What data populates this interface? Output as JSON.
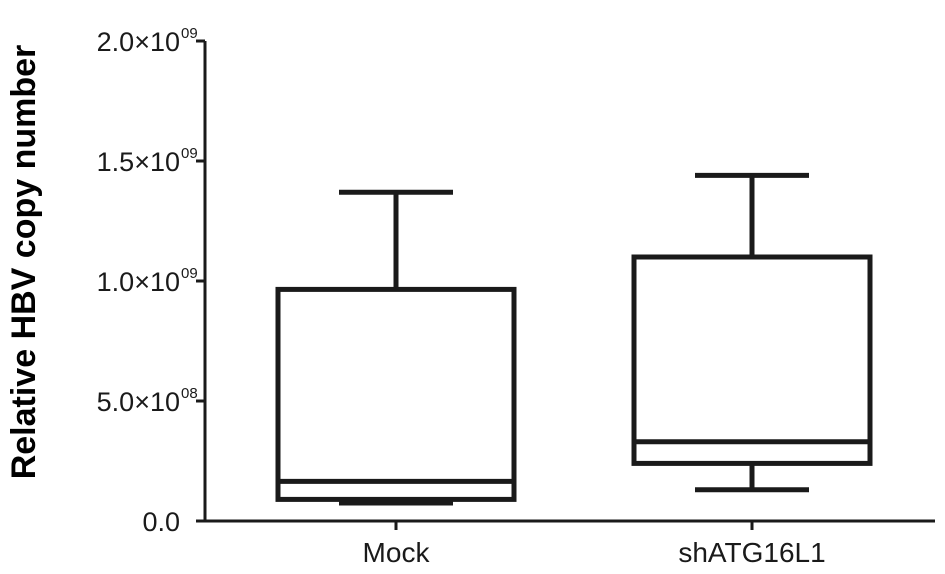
{
  "chart_data": {
    "type": "boxplot",
    "title": "",
    "ylabel": "Relative HBV copy number",
    "xlabel": "",
    "ylim": [
      0,
      2000000000
    ],
    "y_ticks": [
      {
        "value": 0,
        "mantissa": "0.0",
        "exp": ""
      },
      {
        "value": 500000000,
        "mantissa": "5.0×10",
        "exp": "08"
      },
      {
        "value": 1000000000,
        "mantissa": "1.0×10",
        "exp": "09"
      },
      {
        "value": 1500000000,
        "mantissa": "1.5×10",
        "exp": "09"
      },
      {
        "value": 2000000000,
        "mantissa": "2.0×10",
        "exp": "09"
      }
    ],
    "categories": [
      "Mock",
      "shATG16L1"
    ],
    "boxes": [
      {
        "category": "Mock",
        "min": 75000000,
        "q1": 90000000,
        "median": 165000000,
        "q3": 965000000,
        "max": 1370000000
      },
      {
        "category": "shATG16L1",
        "min": 130000000,
        "q1": 240000000,
        "median": 330000000,
        "q3": 1100000000,
        "max": 1440000000
      }
    ],
    "grid": false,
    "legend": "none",
    "colors": {
      "stroke": "#1a1a1a",
      "text": "#1a1a1a"
    }
  }
}
